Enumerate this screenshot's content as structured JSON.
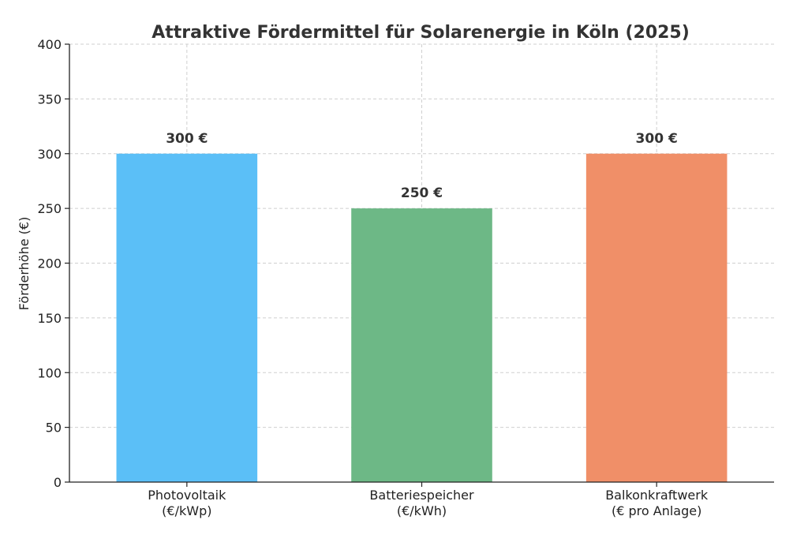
{
  "chart_data": {
    "type": "bar",
    "title": "Attraktive Fördermittel für Solarenergie in Köln (2025)",
    "xlabel": "",
    "ylabel": "Förderhöhe (€)",
    "ylim": [
      0,
      400
    ],
    "yticks": [
      "0",
      "50",
      "100",
      "150",
      "200",
      "250",
      "300",
      "350",
      "400"
    ],
    "ytick_values": [
      0,
      50,
      100,
      150,
      200,
      250,
      300,
      350,
      400
    ],
    "grid": true,
    "categories": [
      [
        "Photovoltaik",
        "(€/kWp)"
      ],
      [
        "Batteriespeicher",
        "(€/kWh)"
      ],
      [
        "Balkonkraftwerk",
        "(€ pro Anlage)"
      ]
    ],
    "values": [
      300,
      250,
      300
    ],
    "data_labels": [
      "300 €",
      "250 €",
      "300 €"
    ],
    "colors": [
      "#5bbff7",
      "#6db886",
      "#f08f68"
    ]
  }
}
